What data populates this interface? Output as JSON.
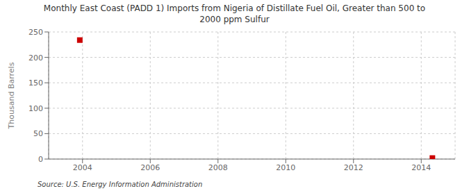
{
  "chart_data": {
    "type": "scatter",
    "title": "Monthly East Coast (PADD 1) Imports from Nigeria of Distillate Fuel Oil, Greater than 500 to\n2000 ppm Sulfur",
    "ylabel": "Thousand Barrels",
    "source": "Source: U.S. Energy Information Administration",
    "x": [
      2003.92,
      2014.33
    ],
    "values": [
      234,
      2
    ],
    "color": "#cc0000",
    "marker": "square",
    "xlim": [
      2003.0,
      2015.0
    ],
    "ylim": [
      0,
      250
    ],
    "xticks": [
      2004,
      2006,
      2008,
      2010,
      2012,
      2014
    ],
    "yticks": [
      0,
      50,
      100,
      150,
      200,
      250
    ],
    "grid": true
  }
}
